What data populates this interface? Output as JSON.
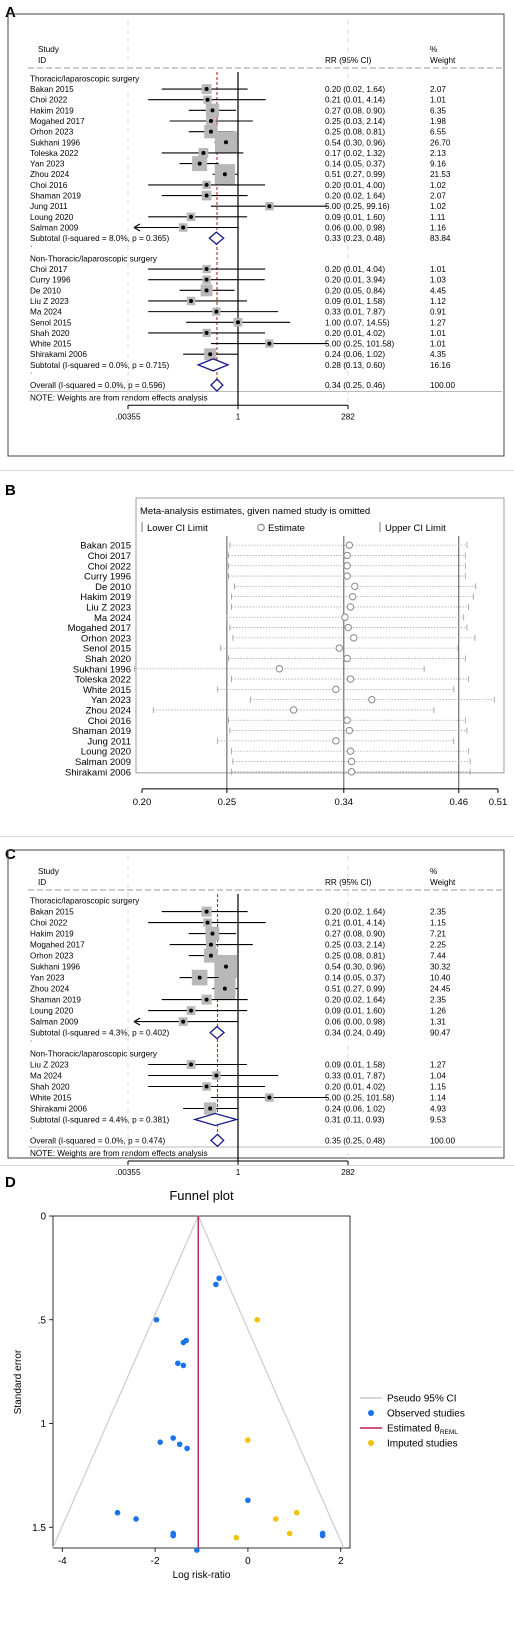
{
  "panels": {
    "a": "A",
    "b": "B",
    "c": "C",
    "d": "D"
  },
  "forest_headers": {
    "study": "Study",
    "id": "ID",
    "rr": "RR (95% CI)",
    "pct": "%",
    "weight": "Weight"
  },
  "chart_data": [
    {
      "type": "forest",
      "x_scale": "log",
      "x_ticks": [
        ".00355",
        "1",
        "282"
      ],
      "null_value": 1,
      "overall_line": 0.34,
      "groups": [
        {
          "name": "Thoracic/laparoscopic surgery",
          "studies": [
            {
              "id": "Bakan 2015",
              "rr": 0.2,
              "lo": 0.02,
              "hi": 1.64,
              "text": "0.20 (0.02, 1.64)",
              "weight": "2.07",
              "w": 2.07
            },
            {
              "id": "Choi 2022",
              "rr": 0.21,
              "lo": 0.01,
              "hi": 4.14,
              "text": "0.21 (0.01, 4.14)",
              "weight": "1.01",
              "w": 1.01
            },
            {
              "id": "Hakim 2019",
              "rr": 0.27,
              "lo": 0.08,
              "hi": 0.9,
              "text": "0.27 (0.08, 0.90)",
              "weight": "6.35",
              "w": 6.35
            },
            {
              "id": "Mogahed 2017",
              "rr": 0.25,
              "lo": 0.03,
              "hi": 2.14,
              "text": "0.25 (0.03, 2.14)",
              "weight": "1.98",
              "w": 1.98
            },
            {
              "id": "Orhon 2023",
              "rr": 0.25,
              "lo": 0.08,
              "hi": 0.81,
              "text": "0.25 (0.08, 0.81)",
              "weight": "6.55",
              "w": 6.55
            },
            {
              "id": "Sukhani 1996",
              "rr": 0.54,
              "lo": 0.3,
              "hi": 0.96,
              "text": "0.54 (0.30, 0.96)",
              "weight": "26.70",
              "w": 26.7
            },
            {
              "id": "Toleska 2022",
              "rr": 0.17,
              "lo": 0.02,
              "hi": 1.32,
              "text": "0.17 (0.02, 1.32)",
              "weight": "2.13",
              "w": 2.13
            },
            {
              "id": "Yan 2023",
              "rr": 0.14,
              "lo": 0.05,
              "hi": 0.37,
              "text": "0.14 (0.05, 0.37)",
              "weight": "9.16",
              "w": 9.16
            },
            {
              "id": "Zhou 2024",
              "rr": 0.51,
              "lo": 0.27,
              "hi": 0.99,
              "text": "0.51 (0.27, 0.99)",
              "weight": "21.53",
              "w": 21.53
            },
            {
              "id": "Choi 2016",
              "rr": 0.2,
              "lo": 0.01,
              "hi": 4.0,
              "text": "0.20 (0.01, 4.00)",
              "weight": "1.02",
              "w": 1.02
            },
            {
              "id": "Shaman 2019",
              "rr": 0.2,
              "lo": 0.02,
              "hi": 1.64,
              "text": "0.20 (0.02, 1.64)",
              "weight": "2.07",
              "w": 2.07
            },
            {
              "id": "Jung 2011",
              "rr": 5.0,
              "lo": 0.25,
              "hi": 99.16,
              "text": "5.00 (0.25, 99.16)",
              "weight": "1.02",
              "w": 1.02
            },
            {
              "id": "Loung 2020",
              "rr": 0.09,
              "lo": 0.01,
              "hi": 1.6,
              "text": "0.09 (0.01, 1.60)",
              "weight": "1.11",
              "w": 1.11
            },
            {
              "id": "Salman 2009",
              "rr": 0.06,
              "lo": 0.0,
              "hi": 0.98,
              "text": "0.06 (0.00, 0.98)",
              "weight": "1.16",
              "w": 1.16,
              "arrow_left": true
            }
          ],
          "subtotal": {
            "label": "Subtotal  (I-squared = 8.0%, p = 0.365)",
            "rr": 0.33,
            "lo": 0.23,
            "hi": 0.48,
            "text": "0.33 (0.23, 0.48)",
            "weight": "83.84"
          }
        },
        {
          "name": "Non-Thoracic/laparoscopic surgery",
          "studies": [
            {
              "id": "Choi 2017",
              "rr": 0.2,
              "lo": 0.01,
              "hi": 4.04,
              "text": "0.20 (0.01, 4.04)",
              "weight": "1.01",
              "w": 1.01
            },
            {
              "id": "Curry 1996",
              "rr": 0.2,
              "lo": 0.01,
              "hi": 3.94,
              "text": "0.20 (0.01, 3.94)",
              "weight": "1.03",
              "w": 1.03
            },
            {
              "id": "De 2010",
              "rr": 0.2,
              "lo": 0.05,
              "hi": 0.84,
              "text": "0.20 (0.05, 0.84)",
              "weight": "4.45",
              "w": 4.45
            },
            {
              "id": "Liu Z 2023",
              "rr": 0.09,
              "lo": 0.01,
              "hi": 1.58,
              "text": "0.09 (0.01, 1.58)",
              "weight": "1.12",
              "w": 1.12
            },
            {
              "id": "Ma 2024",
              "rr": 0.33,
              "lo": 0.01,
              "hi": 7.87,
              "text": "0.33 (0.01, 7.87)",
              "weight": "0.91",
              "w": 0.91
            },
            {
              "id": "Senol 2015",
              "rr": 1.0,
              "lo": 0.07,
              "hi": 14.55,
              "text": "1.00 (0.07, 14.55)",
              "weight": "1.27",
              "w": 1.27
            },
            {
              "id": "Shah 2020",
              "rr": 0.2,
              "lo": 0.01,
              "hi": 4.02,
              "text": "0.20 (0.01, 4.02)",
              "weight": "1.01",
              "w": 1.01
            },
            {
              "id": "White 2015",
              "rr": 5.0,
              "lo": 0.25,
              "hi": 101.58,
              "text": "5.00 (0.25, 101.58)",
              "weight": "1.01",
              "w": 1.01
            },
            {
              "id": "Shirakami 2006",
              "rr": 0.24,
              "lo": 0.06,
              "hi": 1.02,
              "text": "0.24 (0.06, 1.02)",
              "weight": "4.35",
              "w": 4.35
            }
          ],
          "subtotal": {
            "label": "Subtotal  (I-squared = 0.0%, p = 0.715)",
            "rr": 0.28,
            "lo": 0.13,
            "hi": 0.6,
            "text": "0.28 (0.13, 0.60)",
            "weight": "16.16"
          }
        }
      ],
      "overall": {
        "label": "Overall  (I-squared = 0.0%, p = 0.596)",
        "rr": 0.34,
        "lo": 0.25,
        "hi": 0.46,
        "text": "0.34 (0.25, 0.46)",
        "weight": "100.00"
      },
      "note": "NOTE: Weights are from random effects analysis"
    },
    {
      "type": "sensitivity",
      "title": "Meta-analysis estimates, given named study is omitted",
      "legend": [
        "Lower CI Limit",
        "Estimate",
        "Upper CI Limit"
      ],
      "x_ticks": [
        0.2,
        0.25,
        0.34,
        0.46,
        0.51
      ],
      "x_tick_labels": [
        "0.20",
        "0.25",
        "0.34",
        "0.46",
        "0.51"
      ],
      "reference": {
        "lower": 0.25,
        "estimate": 0.34,
        "upper": 0.46
      },
      "studies": [
        {
          "id": "Bakan 2015",
          "est": 0.345,
          "lo": 0.252,
          "hi": 0.47
        },
        {
          "id": "Choi 2017",
          "est": 0.343,
          "lo": 0.251,
          "hi": 0.468
        },
        {
          "id": "Choi 2022",
          "est": 0.343,
          "lo": 0.251,
          "hi": 0.468
        },
        {
          "id": "Curry 1996",
          "est": 0.343,
          "lo": 0.251,
          "hi": 0.468
        },
        {
          "id": "De 2010",
          "est": 0.35,
          "lo": 0.255,
          "hi": 0.481
        },
        {
          "id": "Hakim 2019",
          "est": 0.348,
          "lo": 0.253,
          "hi": 0.478
        },
        {
          "id": "Liu Z 2023",
          "est": 0.346,
          "lo": 0.253,
          "hi": 0.472
        },
        {
          "id": "Ma 2024",
          "est": 0.341,
          "lo": 0.25,
          "hi": 0.466
        },
        {
          "id": "Mogahed 2017",
          "est": 0.344,
          "lo": 0.252,
          "hi": 0.47
        },
        {
          "id": "Orhon 2023",
          "est": 0.349,
          "lo": 0.254,
          "hi": 0.48
        },
        {
          "id": "Senol 2015",
          "est": 0.336,
          "lo": 0.246,
          "hi": 0.459
        },
        {
          "id": "Shah 2020",
          "est": 0.343,
          "lo": 0.251,
          "hi": 0.468
        },
        {
          "id": "Sukhani 1996",
          "est": 0.287,
          "lo": 0.196,
          "hi": 0.42
        },
        {
          "id": "Toleska 2022",
          "est": 0.346,
          "lo": 0.253,
          "hi": 0.472
        },
        {
          "id": "White 2015",
          "est": 0.333,
          "lo": 0.244,
          "hi": 0.454
        },
        {
          "id": "Yan 2023",
          "est": 0.366,
          "lo": 0.266,
          "hi": 0.505
        },
        {
          "id": "Zhou 2024",
          "est": 0.298,
          "lo": 0.206,
          "hi": 0.431
        },
        {
          "id": "Choi 2016",
          "est": 0.343,
          "lo": 0.251,
          "hi": 0.468
        },
        {
          "id": "Shaman 2019",
          "est": 0.345,
          "lo": 0.252,
          "hi": 0.47
        },
        {
          "id": "Jung 2011",
          "est": 0.333,
          "lo": 0.244,
          "hi": 0.454
        },
        {
          "id": "Loung 2020",
          "est": 0.346,
          "lo": 0.253,
          "hi": 0.472
        },
        {
          "id": "Salman 2009",
          "est": 0.347,
          "lo": 0.254,
          "hi": 0.474
        },
        {
          "id": "Shirakami 2006",
          "est": 0.347,
          "lo": 0.253,
          "hi": 0.474
        }
      ]
    },
    {
      "type": "forest",
      "x_scale": "log",
      "x_ticks": [
        ".00355",
        "1",
        "282"
      ],
      "null_value": 1,
      "overall_line": 0.35,
      "groups": [
        {
          "name": "Thoracic/laparoscopic surgery",
          "studies": [
            {
              "id": "Bakan 2015",
              "rr": 0.2,
              "lo": 0.02,
              "hi": 1.64,
              "text": "0.20 (0.02, 1.64)",
              "weight": "2.35",
              "w": 2.35
            },
            {
              "id": "Choi 2022",
              "rr": 0.21,
              "lo": 0.01,
              "hi": 4.14,
              "text": "0.21 (0.01, 4.14)",
              "weight": "1.15",
              "w": 1.15
            },
            {
              "id": "Hakim 2019",
              "rr": 0.27,
              "lo": 0.08,
              "hi": 0.9,
              "text": "0.27 (0.08, 0.90)",
              "weight": "7.21",
              "w": 7.21
            },
            {
              "id": "Mogahed 2017",
              "rr": 0.25,
              "lo": 0.03,
              "hi": 2.14,
              "text": "0.25 (0.03, 2.14)",
              "weight": "2.25",
              "w": 2.25
            },
            {
              "id": "Orhon 2023",
              "rr": 0.25,
              "lo": 0.08,
              "hi": 0.81,
              "text": "0.25 (0.08, 0.81)",
              "weight": "7.44",
              "w": 7.44
            },
            {
              "id": "Sukhani 1996",
              "rr": 0.54,
              "lo": 0.3,
              "hi": 0.96,
              "text": "0.54 (0.30, 0.96)",
              "weight": "30.32",
              "w": 30.32
            },
            {
              "id": "Yan 2023",
              "rr": 0.14,
              "lo": 0.05,
              "hi": 0.37,
              "text": "0.14 (0.05, 0.37)",
              "weight": "10.40",
              "w": 10.4
            },
            {
              "id": "Zhou 2024",
              "rr": 0.51,
              "lo": 0.27,
              "hi": 0.99,
              "text": "0.51 (0.27, 0.99)",
              "weight": "24.45",
              "w": 24.45
            },
            {
              "id": "Shaman 2019",
              "rr": 0.2,
              "lo": 0.02,
              "hi": 1.64,
              "text": "0.20 (0.02, 1.64)",
              "weight": "2.35",
              "w": 2.35
            },
            {
              "id": "Loung 2020",
              "rr": 0.09,
              "lo": 0.01,
              "hi": 1.6,
              "text": "0.09 (0.01, 1.60)",
              "weight": "1.26",
              "w": 1.26
            },
            {
              "id": "Salman 2009",
              "rr": 0.06,
              "lo": 0.0,
              "hi": 0.98,
              "text": "0.06 (0.00, 0.98)",
              "weight": "1.31",
              "w": 1.31,
              "arrow_left": true
            }
          ],
          "subtotal": {
            "label": "Subtotal  (I-squared = 4.3%, p = 0.402)",
            "rr": 0.34,
            "lo": 0.24,
            "hi": 0.49,
            "text": "0.34 (0.24, 0.49)",
            "weight": "90.47"
          }
        },
        {
          "name": "Non-Thoracic/laparoscopic surgery",
          "studies": [
            {
              "id": "Liu Z 2023",
              "rr": 0.09,
              "lo": 0.01,
              "hi": 1.58,
              "text": "0.09 (0.01, 1.58)",
              "weight": "1.27",
              "w": 1.27
            },
            {
              "id": "Ma 2024",
              "rr": 0.33,
              "lo": 0.01,
              "hi": 7.87,
              "text": "0.33 (0.01, 7.87)",
              "weight": "1.04",
              "w": 1.04
            },
            {
              "id": "Shah 2020",
              "rr": 0.2,
              "lo": 0.01,
              "hi": 4.02,
              "text": "0.20 (0.01, 4.02)",
              "weight": "1.15",
              "w": 1.15
            },
            {
              "id": "White 2015",
              "rr": 5.0,
              "lo": 0.25,
              "hi": 101.58,
              "text": "5.00 (0.25, 101.58)",
              "weight": "1.14",
              "w": 1.14
            },
            {
              "id": "Shirakami 2006",
              "rr": 0.24,
              "lo": 0.06,
              "hi": 1.02,
              "text": "0.24 (0.06, 1.02)",
              "weight": "4.93",
              "w": 4.93
            }
          ],
          "subtotal": {
            "label": "Subtotal  (I-squared = 4.4%, p = 0.381)",
            "rr": 0.31,
            "lo": 0.11,
            "hi": 0.93,
            "text": "0.31 (0.11, 0.93)",
            "weight": "9.53"
          }
        }
      ],
      "overall": {
        "label": "Overall  (I-squared = 0.0%, p = 0.474)",
        "rr": 0.35,
        "lo": 0.25,
        "hi": 0.48,
        "text": "0.35 (0.25, 0.48)",
        "weight": "100.00"
      },
      "note": "NOTE: Weights are from random effects analysis"
    },
    {
      "type": "scatter",
      "title": "Funnel plot",
      "xlabel": "Log risk-ratio",
      "ylabel": "Standard error",
      "xlim": [
        -4.2,
        2.2
      ],
      "ylim": [
        0,
        1.6
      ],
      "y_reversed": true,
      "x_ticks": [
        -4,
        -2,
        0,
        2
      ],
      "x_tick_labels": [
        "-4",
        "-2",
        "0",
        "2"
      ],
      "y_ticks": [
        0,
        0.5,
        1,
        1.5
      ],
      "y_tick_labels": [
        "0",
        ".5",
        "1",
        "1.5"
      ],
      "estimate_line": -1.07,
      "legend": [
        {
          "label": "Pseudo 95% CI",
          "kind": "line",
          "color": "#cccccc"
        },
        {
          "label": "Observed studies",
          "kind": "dot",
          "color": "#1a73e8"
        },
        {
          "label": "Estimated θ",
          "sub": "REML",
          "kind": "line",
          "color": "#c2185b"
        },
        {
          "label": "Imputed studies",
          "kind": "dot",
          "color": "#f4c20d"
        }
      ],
      "series": [
        {
          "name": "Observed studies",
          "color": "#1a73e8",
          "points": [
            {
              "x": -0.62,
              "y": 0.3
            },
            {
              "x": -0.69,
              "y": 0.33
            },
            {
              "x": -1.97,
              "y": 0.5
            },
            {
              "x": -1.33,
              "y": 0.6
            },
            {
              "x": -1.39,
              "y": 0.61
            },
            {
              "x": -1.39,
              "y": 0.72
            },
            {
              "x": -1.51,
              "y": 0.71
            },
            {
              "x": -1.61,
              "y": 1.07
            },
            {
              "x": -1.47,
              "y": 1.1
            },
            {
              "x": -1.31,
              "y": 1.12
            },
            {
              "x": -1.89,
              "y": 1.09
            },
            {
              "x": 0.0,
              "y": 1.37
            },
            {
              "x": -2.81,
              "y": 1.43
            },
            {
              "x": -2.41,
              "y": 1.46
            },
            {
              "x": -1.61,
              "y": 1.53
            },
            {
              "x": -1.61,
              "y": 1.54
            },
            {
              "x": -1.61,
              "y": 1.54
            },
            {
              "x": -1.1,
              "y": 1.61
            },
            {
              "x": 1.61,
              "y": 1.53
            },
            {
              "x": 1.61,
              "y": 1.54
            }
          ]
        },
        {
          "name": "Imputed studies",
          "color": "#f4c20d",
          "points": [
            {
              "x": 0.2,
              "y": 0.5
            },
            {
              "x": 0.0,
              "y": 1.08
            },
            {
              "x": 0.6,
              "y": 1.46
            },
            {
              "x": 1.05,
              "y": 1.43
            },
            {
              "x": 0.9,
              "y": 1.53
            },
            {
              "x": -0.25,
              "y": 1.55
            }
          ]
        }
      ]
    }
  ]
}
